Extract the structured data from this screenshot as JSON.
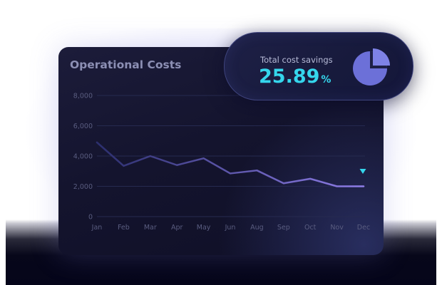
{
  "card": {
    "title": "Operational Costs"
  },
  "savings": {
    "label": "Total cost savings",
    "value": "25.89",
    "unit": "%",
    "icon": "pie-chart-icon",
    "accent": "#35d6ec"
  },
  "chart_data": {
    "type": "line",
    "title": "",
    "xlabel": "",
    "ylabel": "",
    "categories": [
      "Jan",
      "Feb",
      "Mar",
      "Apr",
      "May",
      "Jun",
      "Aug",
      "Sep",
      "Oct",
      "Nov",
      "Dec"
    ],
    "y_ticks": [
      "0",
      "2,000",
      "4,000",
      "6,000",
      "8,000"
    ],
    "ylim": [
      0,
      8000
    ],
    "grid": true,
    "series": [
      {
        "values": [
          4900,
          3350,
          4000,
          3400,
          3850,
          2850,
          3050,
          2200,
          2500,
          2000,
          2000
        ]
      }
    ],
    "line_gradient": [
      "#2c2f6e",
      "#8f7ee8"
    ]
  }
}
